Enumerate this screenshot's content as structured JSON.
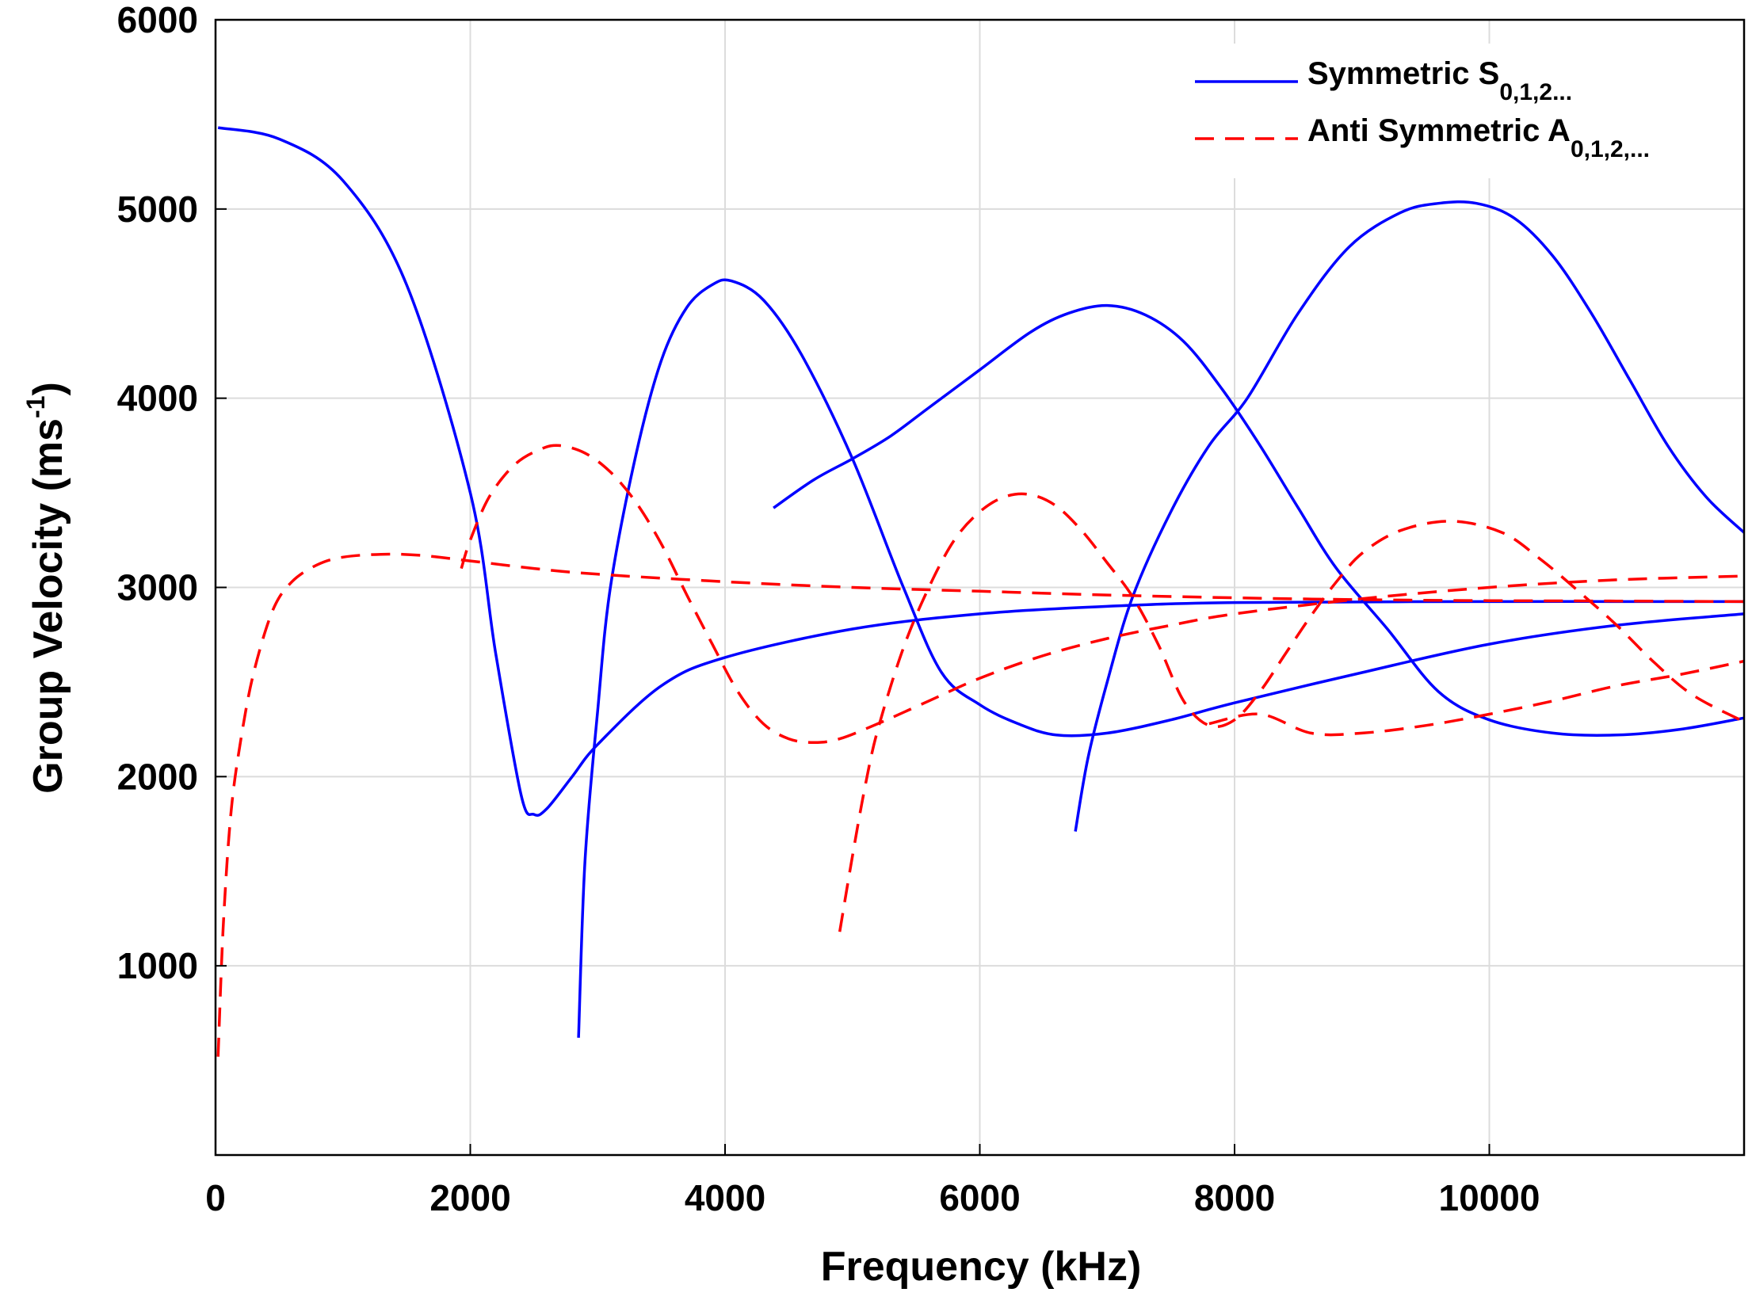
{
  "chart_data": {
    "type": "line",
    "title": "",
    "xlabel": "Frequency (kHz)",
    "ylabel_main": "Group Velocity (ms",
    "ylabel_sup": "-1",
    "ylabel_close": ")",
    "xlim": [
      0,
      12000
    ],
    "ylim": [
      0,
      6000
    ],
    "grid": true,
    "xticks": [
      0,
      2000,
      4000,
      6000,
      8000,
      10000
    ],
    "yticks": [
      1000,
      2000,
      3000,
      4000,
      5000,
      6000
    ],
    "legend": {
      "placement": "top-right",
      "entries": [
        {
          "main": "Symmetric S",
          "sub": "0,1,2...",
          "color": "#0000ff",
          "dash": "solid"
        },
        {
          "main": "Anti Symmetric A",
          "sub": "0,1,2,...",
          "color": "#ff0000",
          "dash": "dashed"
        }
      ]
    },
    "series": [
      {
        "name": "S0",
        "group": "symmetric",
        "color": "#0000ff",
        "points": [
          [
            20,
            5430
          ],
          [
            500,
            5370
          ],
          [
            1000,
            5150
          ],
          [
            1500,
            4600
          ],
          [
            2000,
            3500
          ],
          [
            2200,
            2650
          ],
          [
            2400,
            1900
          ],
          [
            2500,
            1800
          ],
          [
            2600,
            1830
          ],
          [
            2800,
            2000
          ],
          [
            3000,
            2170
          ],
          [
            3500,
            2480
          ],
          [
            4000,
            2630
          ],
          [
            5000,
            2780
          ],
          [
            6000,
            2860
          ],
          [
            7000,
            2900
          ],
          [
            8000,
            2920
          ],
          [
            10000,
            2925
          ],
          [
            12000,
            2925
          ]
        ]
      },
      {
        "name": "S1",
        "group": "symmetric",
        "color": "#0000ff",
        "points": [
          [
            2850,
            620
          ],
          [
            2900,
            1550
          ],
          [
            3000,
            2350
          ],
          [
            3100,
            3000
          ],
          [
            3300,
            3700
          ],
          [
            3500,
            4200
          ],
          [
            3700,
            4480
          ],
          [
            3900,
            4600
          ],
          [
            4050,
            4620
          ],
          [
            4300,
            4520
          ],
          [
            4600,
            4230
          ],
          [
            5000,
            3680
          ],
          [
            5400,
            3000
          ],
          [
            5700,
            2550
          ],
          [
            6000,
            2380
          ],
          [
            6300,
            2280
          ],
          [
            6600,
            2220
          ],
          [
            7000,
            2230
          ],
          [
            7500,
            2300
          ],
          [
            8000,
            2390
          ],
          [
            9000,
            2550
          ],
          [
            10000,
            2700
          ],
          [
            11000,
            2800
          ],
          [
            12000,
            2860
          ]
        ]
      },
      {
        "name": "S2",
        "group": "symmetric",
        "color": "#0000ff",
        "points": [
          [
            4380,
            3420
          ],
          [
            4700,
            3570
          ],
          [
            5000,
            3680
          ],
          [
            5300,
            3800
          ],
          [
            5600,
            3950
          ],
          [
            6000,
            4150
          ],
          [
            6400,
            4350
          ],
          [
            6700,
            4450
          ],
          [
            7000,
            4490
          ],
          [
            7300,
            4440
          ],
          [
            7600,
            4300
          ],
          [
            7900,
            4050
          ],
          [
            8200,
            3750
          ],
          [
            8500,
            3420
          ],
          [
            8800,
            3100
          ],
          [
            9200,
            2780
          ],
          [
            9600,
            2450
          ],
          [
            10000,
            2300
          ],
          [
            10500,
            2230
          ],
          [
            11000,
            2220
          ],
          [
            11500,
            2250
          ],
          [
            12000,
            2310
          ]
        ]
      },
      {
        "name": "S3",
        "group": "symmetric",
        "color": "#0000ff",
        "points": [
          [
            6750,
            1710
          ],
          [
            6850,
            2100
          ],
          [
            7000,
            2500
          ],
          [
            7200,
            2950
          ],
          [
            7500,
            3400
          ],
          [
            7800,
            3750
          ],
          [
            8100,
            4000
          ],
          [
            8500,
            4450
          ],
          [
            8900,
            4800
          ],
          [
            9300,
            4980
          ],
          [
            9600,
            5030
          ],
          [
            9900,
            5030
          ],
          [
            10200,
            4950
          ],
          [
            10500,
            4750
          ],
          [
            10800,
            4450
          ],
          [
            11100,
            4100
          ],
          [
            11400,
            3750
          ],
          [
            11700,
            3480
          ],
          [
            12000,
            3290
          ]
        ]
      },
      {
        "name": "A0",
        "group": "antisymmetric",
        "color": "#ff0000",
        "points": [
          [
            20,
            520
          ],
          [
            60,
            1200
          ],
          [
            120,
            1800
          ],
          [
            200,
            2200
          ],
          [
            300,
            2550
          ],
          [
            450,
            2880
          ],
          [
            600,
            3030
          ],
          [
            800,
            3120
          ],
          [
            1000,
            3160
          ],
          [
            1300,
            3175
          ],
          [
            1600,
            3170
          ],
          [
            2000,
            3140
          ],
          [
            2500,
            3100
          ],
          [
            3000,
            3070
          ],
          [
            4000,
            3030
          ],
          [
            5000,
            3000
          ],
          [
            6000,
            2980
          ],
          [
            7000,
            2960
          ],
          [
            8000,
            2945
          ],
          [
            9000,
            2935
          ],
          [
            10000,
            2930
          ],
          [
            11000,
            2928
          ],
          [
            12000,
            2925
          ]
        ]
      },
      {
        "name": "A1",
        "group": "antisymmetric",
        "color": "#ff0000",
        "points": [
          [
            1930,
            3100
          ],
          [
            2000,
            3250
          ],
          [
            2150,
            3480
          ],
          [
            2350,
            3650
          ],
          [
            2550,
            3730
          ],
          [
            2700,
            3750
          ],
          [
            2900,
            3710
          ],
          [
            3100,
            3610
          ],
          [
            3300,
            3450
          ],
          [
            3500,
            3230
          ],
          [
            3700,
            2960
          ],
          [
            3900,
            2700
          ],
          [
            4100,
            2450
          ],
          [
            4300,
            2280
          ],
          [
            4500,
            2200
          ],
          [
            4700,
            2180
          ],
          [
            4900,
            2200
          ],
          [
            5200,
            2280
          ],
          [
            5600,
            2400
          ],
          [
            6000,
            2520
          ],
          [
            6500,
            2640
          ],
          [
            7000,
            2730
          ],
          [
            7500,
            2800
          ],
          [
            8000,
            2860
          ],
          [
            9000,
            2940
          ],
          [
            10000,
            3000
          ],
          [
            11000,
            3040
          ],
          [
            12000,
            3060
          ]
        ]
      },
      {
        "name": "A2",
        "group": "antisymmetric",
        "color": "#ff0000",
        "points": [
          [
            4900,
            1180
          ],
          [
            5000,
            1580
          ],
          [
            5100,
            1950
          ],
          [
            5200,
            2250
          ],
          [
            5400,
            2680
          ],
          [
            5600,
            3000
          ],
          [
            5800,
            3250
          ],
          [
            6000,
            3400
          ],
          [
            6200,
            3480
          ],
          [
            6400,
            3490
          ],
          [
            6600,
            3430
          ],
          [
            6800,
            3300
          ],
          [
            7000,
            3130
          ],
          [
            7200,
            2950
          ],
          [
            7400,
            2700
          ],
          [
            7600,
            2400
          ],
          [
            7800,
            2270
          ],
          [
            8000,
            2300
          ],
          [
            8200,
            2450
          ],
          [
            8400,
            2650
          ],
          [
            8600,
            2850
          ],
          [
            8800,
            3030
          ],
          [
            9000,
            3180
          ],
          [
            9300,
            3300
          ],
          [
            9700,
            3350
          ],
          [
            10100,
            3290
          ],
          [
            10400,
            3150
          ],
          [
            10700,
            2980
          ],
          [
            11000,
            2800
          ],
          [
            11300,
            2600
          ],
          [
            11600,
            2430
          ],
          [
            12000,
            2290
          ]
        ]
      },
      {
        "name": "A3",
        "group": "antisymmetric",
        "color": "#ff0000",
        "points": [
          [
            7800,
            2280
          ],
          [
            8200,
            2330
          ],
          [
            8600,
            2230
          ],
          [
            9000,
            2230
          ],
          [
            9500,
            2270
          ],
          [
            10000,
            2330
          ],
          [
            10500,
            2400
          ],
          [
            11000,
            2480
          ],
          [
            11500,
            2540
          ],
          [
            12000,
            2610
          ]
        ]
      }
    ]
  }
}
